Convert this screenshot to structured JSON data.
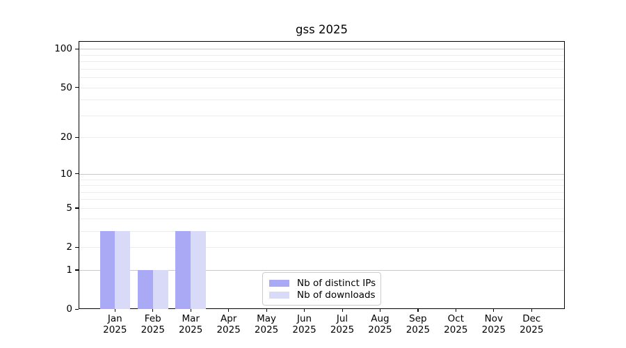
{
  "chart_data": {
    "type": "bar",
    "title": "gss 2025",
    "categories": [
      "Jan",
      "Feb",
      "Mar",
      "Apr",
      "May",
      "Jun",
      "Jul",
      "Aug",
      "Sep",
      "Oct",
      "Nov",
      "Dec"
    ],
    "year_label": "2025",
    "series": [
      {
        "name": "Nb of distinct IPs",
        "color": "#a9a9f5",
        "values": [
          3,
          1,
          3,
          0,
          0,
          0,
          0,
          0,
          0,
          0,
          0,
          0
        ]
      },
      {
        "name": "Nb of downloads",
        "color": "#d9d9f8",
        "values": [
          3,
          1,
          3,
          0,
          0,
          0,
          0,
          0,
          0,
          0,
          0,
          0
        ]
      }
    ],
    "yscale": "log1p",
    "ylim": [
      0,
      115
    ],
    "yticks": [
      0,
      1,
      2,
      5,
      10,
      20,
      50,
      100
    ],
    "major_gridlines": [
      1,
      10,
      100
    ],
    "minor_gridlines": [
      2,
      3,
      4,
      6,
      7,
      8,
      9,
      20,
      30,
      40,
      60,
      70,
      80,
      90
    ],
    "labeled_minor_gridlines": [
      5,
      50
    ],
    "grid": true,
    "legend_position": "lower-center",
    "colors": {
      "major_grid": "#c8c8c8",
      "minor_grid": "#ececec",
      "spine": "#000000",
      "legend_border": "#cccccc",
      "background": "#ffffff"
    }
  }
}
